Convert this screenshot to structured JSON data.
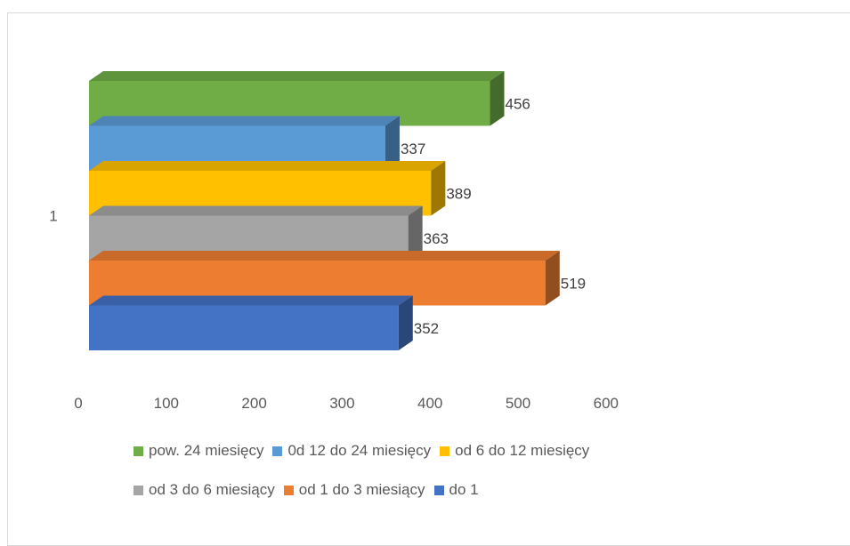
{
  "chart_data": {
    "type": "bar",
    "orientation": "horizontal",
    "style": "3d-clustered",
    "categories": [
      "1"
    ],
    "xlim": [
      0,
      600
    ],
    "x_ticks": [
      "0",
      "100",
      "200",
      "300",
      "400",
      "500",
      "600"
    ],
    "grid": false,
    "legend_position": "bottom",
    "series": [
      {
        "name": "pow. 24 miesięcy",
        "values": [
          456
        ],
        "color": "#70ad47",
        "label": "456"
      },
      {
        "name": "0d 12 do 24 miesięcy",
        "values": [
          337
        ],
        "color": "#5b9bd5",
        "label": "337"
      },
      {
        "name": "od 6 do 12 miesięcy",
        "values": [
          389
        ],
        "color": "#ffc000",
        "label": "389"
      },
      {
        "name": "od 3 do 6 miesiący",
        "values": [
          363
        ],
        "color": "#a5a5a5",
        "label": "363"
      },
      {
        "name": "od 1 do 3 miesiący",
        "values": [
          519
        ],
        "color": "#ed7d31",
        "label": "519"
      },
      {
        "name": "do 1",
        "values": [
          352
        ],
        "color": "#4472c4",
        "label": "352"
      }
    ],
    "legend_rows": [
      [
        0,
        1,
        2
      ],
      [
        3,
        4,
        5
      ]
    ]
  }
}
